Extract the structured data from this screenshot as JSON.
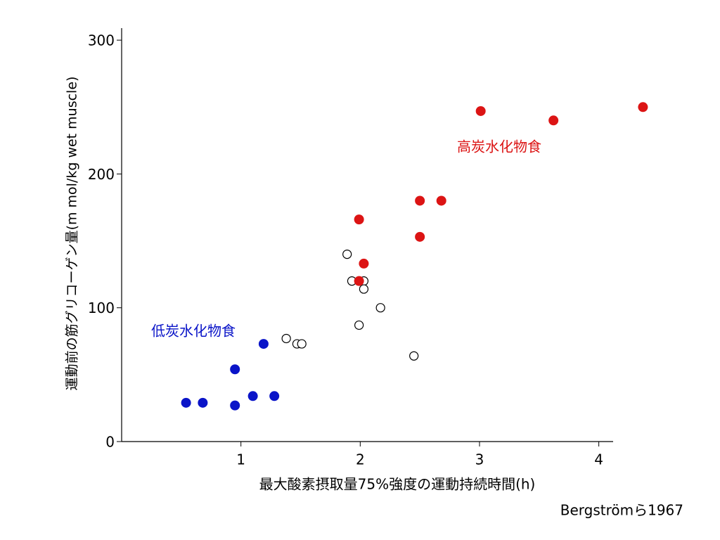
{
  "chart_data": {
    "type": "scatter",
    "xlabel": "最大酸素摂取量75%強度の運動持続時間(h)",
    "ylabel": "運動前の筋グリコーゲン量(m mol/kg wet muscle)",
    "credit": "Bergströmら1967",
    "xlim": [
      0,
      4.12
    ],
    "xticks": [
      1,
      2,
      3,
      4
    ],
    "ylim": [
      0,
      309
    ],
    "yticks": [
      0,
      100,
      200,
      300
    ],
    "series": [
      {
        "name": "低炭水化物食",
        "color": "#0a14c8",
        "filled": true,
        "x": [
          0.54,
          0.68,
          0.95,
          0.95,
          1.1,
          1.28,
          1.19
        ],
        "values": [
          29,
          29,
          27,
          54,
          34,
          34,
          73
        ]
      },
      {
        "color": "#000000",
        "filled": false,
        "x": [
          1.38,
          1.47,
          1.51,
          1.89,
          1.93,
          2.03,
          2.03,
          2.17,
          1.99,
          2.45
        ],
        "values": [
          77,
          73,
          73,
          140,
          120,
          120,
          114,
          100,
          87,
          64
        ]
      },
      {
        "name": "高炭水化物食",
        "color": "#dc1414",
        "filled": true,
        "x": [
          3.01,
          3.62,
          4.37,
          2.5,
          2.68,
          2.5,
          1.99,
          2.03,
          1.99
        ],
        "values": [
          247,
          240,
          250,
          180,
          180,
          153,
          166,
          133,
          120
        ]
      }
    ]
  }
}
